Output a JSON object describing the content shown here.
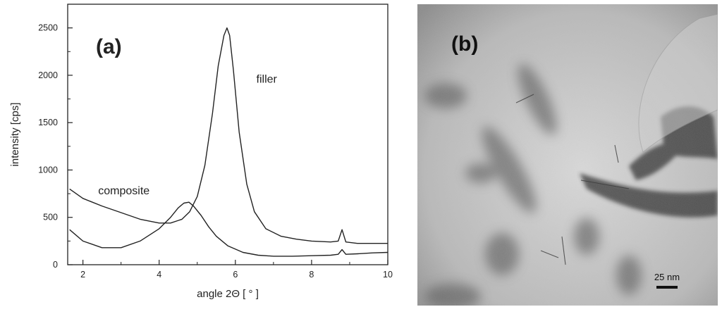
{
  "panels": {
    "a": {
      "label": "(a)",
      "chart_data": {
        "type": "line",
        "xlabel": "angle 2Θ [ ° ]",
        "ylabel": "intensity [cps]",
        "xlim": [
          1.6,
          10
        ],
        "ylim": [
          0,
          2750
        ],
        "xticks": [
          2,
          4,
          6,
          8,
          10
        ],
        "yticks": [
          0,
          500,
          1000,
          1500,
          2000,
          2500
        ],
        "grid": false,
        "legend": "none",
        "series": [
          {
            "name": "filler",
            "color": "#222222",
            "x": [
              1.65,
              2.0,
              2.5,
              3.0,
              3.5,
              4.0,
              4.3,
              4.6,
              4.8,
              5.0,
              5.2,
              5.4,
              5.55,
              5.7,
              5.78,
              5.85,
              5.95,
              6.1,
              6.3,
              6.5,
              6.8,
              7.2,
              7.6,
              8.0,
              8.5,
              8.7,
              8.8,
              8.9,
              9.2,
              9.6,
              10.0
            ],
            "y": [
              800,
              700,
              620,
              550,
              480,
              440,
              440,
              480,
              560,
              720,
              1050,
              1600,
              2100,
              2420,
              2500,
              2420,
              2050,
              1400,
              850,
              560,
              380,
              300,
              270,
              250,
              240,
              250,
              370,
              240,
              225,
              225,
              225
            ]
          },
          {
            "name": "composite",
            "color": "#222222",
            "x": [
              1.65,
              2.0,
              2.5,
              3.0,
              3.5,
              4.0,
              4.3,
              4.5,
              4.65,
              4.78,
              4.9,
              5.1,
              5.3,
              5.5,
              5.8,
              6.2,
              6.6,
              7.0,
              7.5,
              8.0,
              8.5,
              8.7,
              8.8,
              8.9,
              9.2,
              9.6,
              10.0
            ],
            "y": [
              370,
              250,
              180,
              180,
              250,
              380,
              500,
              600,
              650,
              660,
              620,
              520,
              400,
              300,
              200,
              130,
              100,
              90,
              90,
              95,
              100,
              110,
              160,
              110,
              115,
              125,
              130
            ]
          }
        ],
        "annotations": [
          {
            "text": "filler",
            "x": 6.55,
            "y": 1920
          },
          {
            "text": "composite",
            "x": 2.4,
            "y": 745
          }
        ]
      }
    },
    "b": {
      "label": "(b)",
      "scale_bar": "25 nm"
    }
  }
}
